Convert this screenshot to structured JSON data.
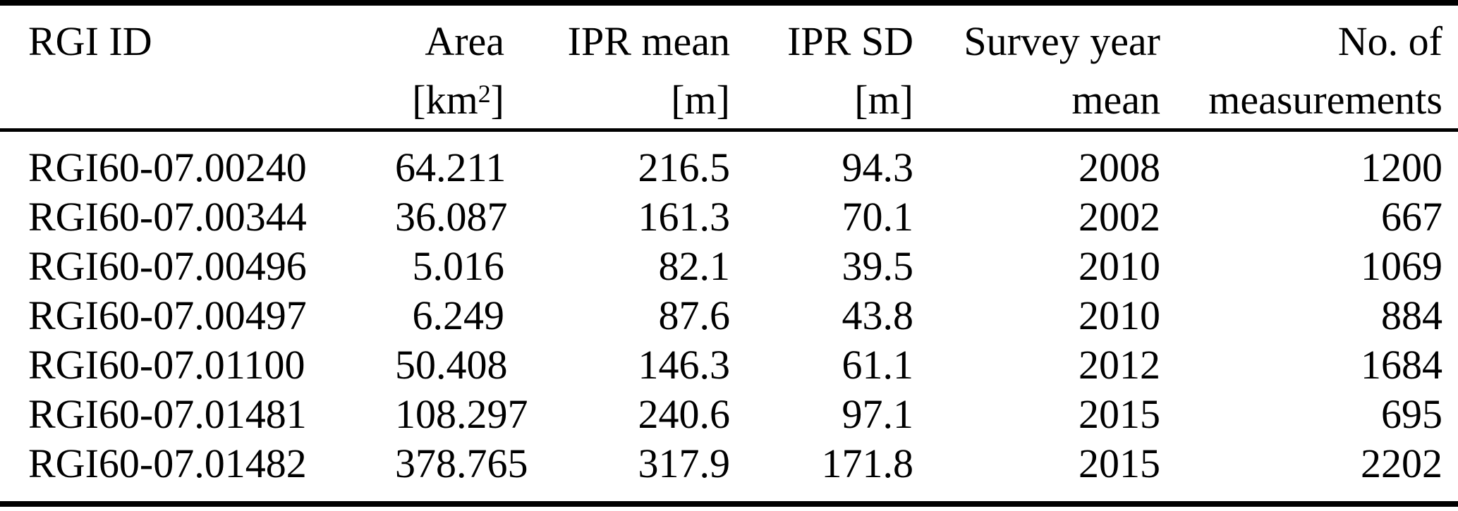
{
  "table": {
    "columns": [
      {
        "line1": "RGI ID",
        "line2": ""
      },
      {
        "line1": "Area",
        "unit_pre": "[km",
        "unit_sup": "2",
        "unit_post": "]"
      },
      {
        "line1": "IPR mean",
        "line2": "[m]"
      },
      {
        "line1": "IPR SD",
        "line2": "[m]"
      },
      {
        "line1": "Survey year",
        "line2": "mean"
      },
      {
        "line1": "No. of",
        "line2": "measurements"
      }
    ],
    "rows": [
      [
        "RGI60-07.00240",
        "64.211",
        "216.5",
        "94.3",
        "2008",
        "1200"
      ],
      [
        "RGI60-07.00344",
        "36.087",
        "161.3",
        "70.1",
        "2002",
        "667"
      ],
      [
        "RGI60-07.00496",
        "5.016",
        "82.1",
        "39.5",
        "2010",
        "1069"
      ],
      [
        "RGI60-07.00497",
        "6.249",
        "87.6",
        "43.8",
        "2010",
        "884"
      ],
      [
        "RGI60-07.01100",
        "50.408",
        "146.3",
        "61.1",
        "2012",
        "1684"
      ],
      [
        "RGI60-07.01481",
        "108.297",
        "240.6",
        "97.1",
        "2015",
        "695"
      ],
      [
        "RGI60-07.01482",
        "378.765",
        "317.9",
        "171.8",
        "2015",
        "2202"
      ]
    ]
  },
  "colors": {
    "text": "#000000",
    "background": "#ffffff",
    "rule": "#000000"
  }
}
